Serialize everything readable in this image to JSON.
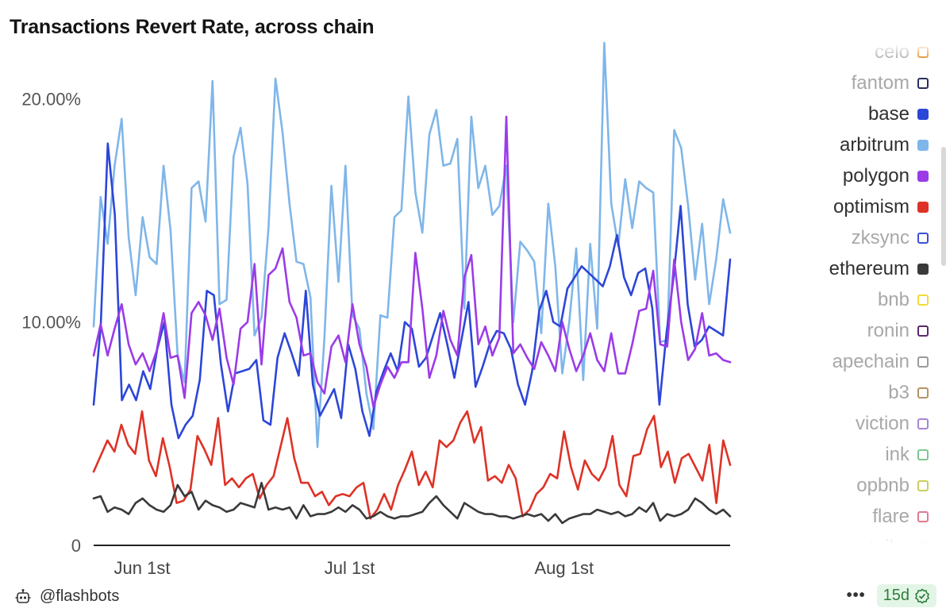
{
  "title": "Transactions Revert Rate, across chain",
  "footer": {
    "handle": "@flashbots",
    "more": "•••",
    "badge": "15d"
  },
  "icons": {
    "footer": "robot-icon",
    "badge": "check-circle-icon",
    "more": "ellipsis-icon"
  },
  "legend": [
    {
      "name": "celo",
      "color": "#e08a1e",
      "active": false
    },
    {
      "name": "fantom",
      "color": "#2b2f5e",
      "active": false
    },
    {
      "name": "base",
      "color": "#2c46d8",
      "active": true
    },
    {
      "name": "arbitrum",
      "color": "#7fb6ea",
      "active": true
    },
    {
      "name": "polygon",
      "color": "#9b3be8",
      "active": true
    },
    {
      "name": "optimism",
      "color": "#de3226",
      "active": true
    },
    {
      "name": "zksync",
      "color": "#3c4fd6",
      "active": false
    },
    {
      "name": "ethereum",
      "color": "#3a3a3a",
      "active": true
    },
    {
      "name": "bnb",
      "color": "#f2dc3a",
      "active": false
    },
    {
      "name": "ronin",
      "color": "#5a2a6a",
      "active": false
    },
    {
      "name": "apechain",
      "color": "#9a9a9a",
      "active": false
    },
    {
      "name": "b3",
      "color": "#b59463",
      "active": false
    },
    {
      "name": "viction",
      "color": "#a585d6",
      "active": false
    },
    {
      "name": "ink",
      "color": "#7ec78f",
      "active": false
    },
    {
      "name": "opbnb",
      "color": "#c9cf5a",
      "active": false
    },
    {
      "name": "flare",
      "color": "#e07a90",
      "active": false
    },
    {
      "name": "taiko",
      "color": "#8fa8e0",
      "active": false
    }
  ],
  "chart_data": {
    "type": "line",
    "title": "Transactions Revert Rate, across chain",
    "x_start": "2024-05-25",
    "x_end": "2024-08-25",
    "x_ticks": [
      {
        "date": "2024-06-01",
        "label": "Jun 1st"
      },
      {
        "date": "2024-07-01",
        "label": "Jul 1st"
      },
      {
        "date": "2024-08-01",
        "label": "Aug 1st"
      }
    ],
    "y_ticks": [
      {
        "value": 0,
        "label": "0"
      },
      {
        "value": 10,
        "label": "10.00%"
      },
      {
        "value": 20,
        "label": "20.00%"
      }
    ],
    "ylim": [
      0,
      23
    ],
    "grid": false,
    "legend_position": "right",
    "series": [
      {
        "name": "arbitrum",
        "color": "#7fb6ea",
        "values": [
          9.8,
          15.6,
          13.5,
          17.0,
          19.1,
          13.8,
          11.2,
          14.7,
          12.9,
          12.6,
          17.0,
          14.1,
          8.5,
          7.3,
          16.0,
          16.3,
          14.5,
          20.8,
          10.8,
          11.0,
          17.4,
          18.7,
          16.2,
          9.4,
          10.2,
          14.2,
          20.9,
          18.5,
          15.3,
          12.7,
          12.6,
          11.1,
          4.4,
          9.3,
          16.1,
          11.8,
          17.0,
          10.3,
          9.7,
          6.8,
          5.2,
          10.3,
          10.2,
          14.7,
          15.0,
          20.1,
          15.8,
          14.0,
          18.4,
          19.5,
          17.0,
          17.1,
          18.2,
          10.6,
          19.2,
          16.0,
          17.0,
          14.8,
          15.2,
          17.0,
          10.0,
          13.6,
          13.2,
          12.7,
          9.5,
          15.3,
          12.5,
          7.7,
          10.0,
          13.3,
          7.4,
          13.5,
          9.7,
          22.5,
          15.3,
          13.4,
          16.4,
          14.2,
          16.3,
          16.0,
          15.8,
          9.1,
          9.2,
          18.6,
          17.8,
          15.2,
          11.9,
          14.4,
          10.8,
          12.8,
          15.5,
          14.0
        ]
      },
      {
        "name": "base",
        "color": "#2c46d8",
        "values": [
          6.3,
          9.8,
          18.0,
          14.8,
          6.5,
          7.2,
          6.5,
          7.8,
          7.0,
          8.8,
          10.0,
          6.3,
          4.8,
          5.4,
          5.8,
          7.4,
          11.4,
          11.2,
          8.1,
          6.0,
          7.7,
          7.8,
          7.9,
          8.3,
          5.6,
          5.4,
          8.4,
          9.5,
          8.6,
          7.6,
          11.4,
          7.2,
          5.8,
          6.4,
          7.0,
          5.7,
          9.0,
          7.9,
          6.0,
          4.9,
          6.9,
          7.8,
          8.6,
          7.8,
          10.0,
          9.7,
          8.0,
          8.4,
          9.4,
          10.4,
          9.0,
          7.5,
          9.2,
          10.9,
          7.1,
          8.0,
          9.0,
          9.6,
          9.5,
          8.8,
          7.2,
          6.3,
          7.8,
          10.5,
          11.4,
          10.0,
          9.8,
          11.5,
          12.0,
          12.5,
          12.2,
          11.9,
          11.6,
          12.5,
          13.9,
          12.0,
          11.2,
          12.2,
          12.4,
          10.6,
          6.3,
          9.5,
          12.0,
          15.2,
          10.8,
          8.9,
          9.2,
          9.8,
          9.6,
          9.4,
          12.8
        ]
      },
      {
        "name": "polygon",
        "color": "#9b3be8",
        "values": [
          8.5,
          9.9,
          8.5,
          9.7,
          10.8,
          9.0,
          8.1,
          8.6,
          7.8,
          8.7,
          10.4,
          8.4,
          8.5,
          6.6,
          10.4,
          10.9,
          10.3,
          9.2,
          10.6,
          8.4,
          7.2,
          9.7,
          10.0,
          12.6,
          8.1,
          12.1,
          12.4,
          13.3,
          10.9,
          10.2,
          8.5,
          8.6,
          7.3,
          6.8,
          8.9,
          9.4,
          8.2,
          10.8,
          9.0,
          8.0,
          6.2,
          7.2,
          8.0,
          7.5,
          8.2,
          8.2,
          13.1,
          10.6,
          7.5,
          8.5,
          10.5,
          9.2,
          8.5,
          12.0,
          13.0,
          9.0,
          9.8,
          8.5,
          9.3,
          19.2,
          8.6,
          9.0,
          8.4,
          7.9,
          9.1,
          8.5,
          7.8,
          10.0,
          8.8,
          7.8,
          8.5,
          9.5,
          8.3,
          7.8,
          9.5,
          7.7,
          7.7,
          9.0,
          10.5,
          10.6,
          12.3,
          9.0,
          8.9,
          12.8,
          10.0,
          8.3,
          8.8,
          10.4,
          8.5,
          8.6,
          8.3,
          8.2
        ]
      },
      {
        "name": "optimism",
        "color": "#de3226",
        "values": [
          3.3,
          4.0,
          4.7,
          4.2,
          5.4,
          4.5,
          4.1,
          6.0,
          3.8,
          3.1,
          4.8,
          3.5,
          1.9,
          2.0,
          2.5,
          4.9,
          4.3,
          3.6,
          5.7,
          2.7,
          3.0,
          2.6,
          3.0,
          3.2,
          2.1,
          2.7,
          3.1,
          4.4,
          5.7,
          3.9,
          2.8,
          2.8,
          2.2,
          2.4,
          1.8,
          2.2,
          2.3,
          2.2,
          2.6,
          2.8,
          1.2,
          1.6,
          2.3,
          1.6,
          2.7,
          3.4,
          4.2,
          2.7,
          3.3,
          2.6,
          4.7,
          4.4,
          4.7,
          5.5,
          6.0,
          4.6,
          5.3,
          2.9,
          3.1,
          2.8,
          3.6,
          3.0,
          1.3,
          1.6,
          2.3,
          2.6,
          3.2,
          3.0,
          5.1,
          3.5,
          2.5,
          3.8,
          3.2,
          2.9,
          3.5,
          4.9,
          2.7,
          2.2,
          4.0,
          4.1,
          5.2,
          5.8,
          3.5,
          4.2,
          2.8,
          3.9,
          4.1,
          3.5,
          2.9,
          4.5,
          1.9,
          4.7,
          3.6
        ]
      },
      {
        "name": "ethereum",
        "color": "#3a3a3a",
        "values": [
          2.1,
          2.2,
          1.5,
          1.7,
          1.6,
          1.4,
          1.9,
          2.1,
          1.8,
          1.6,
          1.5,
          1.8,
          2.7,
          2.2,
          2.4,
          1.6,
          2.0,
          1.8,
          1.7,
          1.5,
          1.6,
          1.9,
          1.8,
          1.7,
          2.8,
          1.6,
          1.7,
          1.6,
          1.7,
          1.2,
          1.8,
          1.3,
          1.4,
          1.4,
          1.5,
          1.7,
          1.5,
          1.8,
          1.6,
          1.2,
          1.3,
          1.5,
          1.3,
          1.2,
          1.3,
          1.3,
          1.4,
          1.5,
          1.9,
          2.2,
          1.8,
          1.5,
          1.2,
          1.9,
          1.7,
          1.5,
          1.4,
          1.4,
          1.3,
          1.3,
          1.2,
          1.3,
          1.4,
          1.3,
          1.4,
          1.1,
          1.4,
          1.0,
          1.2,
          1.3,
          1.4,
          1.4,
          1.6,
          1.5,
          1.4,
          1.5,
          1.3,
          1.4,
          1.7,
          1.5,
          1.9,
          1.1,
          1.4,
          1.3,
          1.4,
          1.6,
          2.1,
          1.9,
          1.6,
          1.4,
          1.6,
          1.3
        ]
      }
    ]
  }
}
